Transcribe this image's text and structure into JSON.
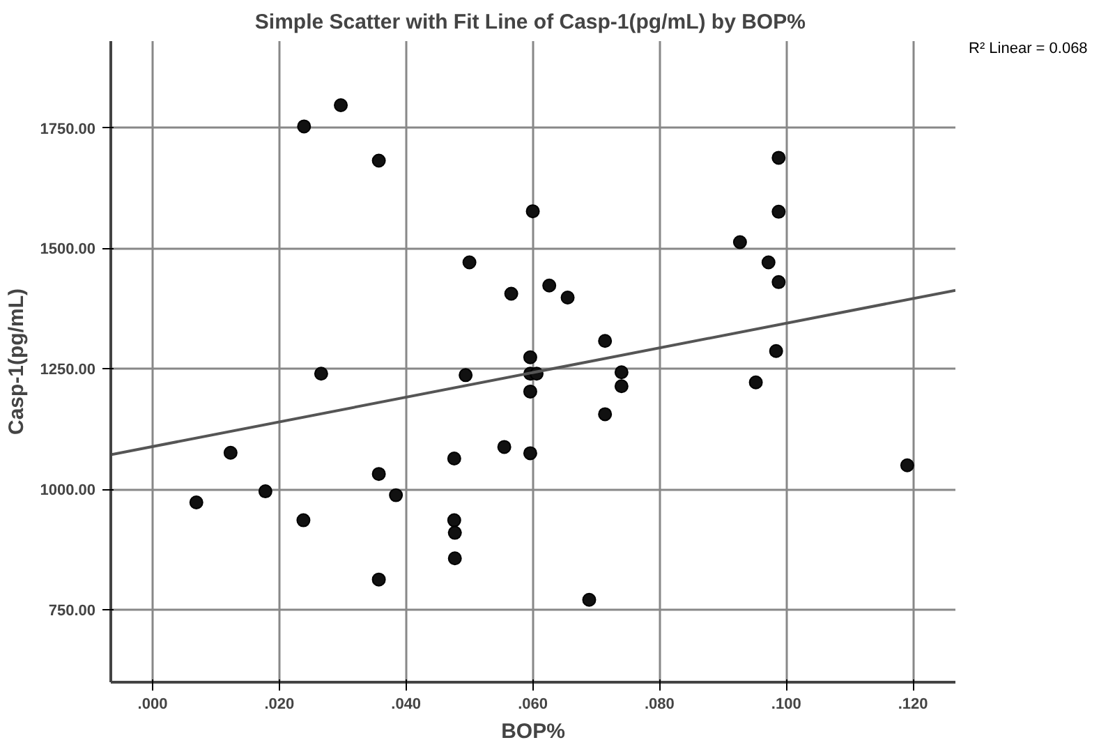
{
  "chart_data": {
    "type": "scatter",
    "title": "Simple Scatter with Fit Line of Casp-1(pg/mL) by  BOP%",
    "xlabel": "BOP%",
    "ylabel": "Casp-1(pg/mL)",
    "annotations": [
      "R² Linear = 0.068"
    ],
    "series": [
      {
        "color": "#111111",
        "marker": "circle",
        "x": [
          0.0239,
          0.0297,
          0.0357,
          0.06,
          0.0988,
          0.0988,
          0.0927,
          0.0972,
          0.0988,
          0.0984,
          0.0952,
          0.0714,
          0.074,
          0.074,
          0.0714,
          0.0626,
          0.0655,
          0.1191,
          0.05,
          0.0566,
          0.0596,
          0.0596,
          0.0606,
          0.0596,
          0.0266,
          0.0494,
          0.0123,
          0.0476,
          0.0555,
          0.0596,
          0.0357,
          0.0178,
          0.0384,
          0.0069,
          0.0238,
          0.0476,
          0.0477,
          0.0477,
          0.0357,
          0.0689
        ],
        "values": [
          1753,
          1797,
          1682,
          1577,
          1688,
          1576,
          1513,
          1471,
          1430,
          1287,
          1222,
          1308,
          1243,
          1214,
          1156,
          1423,
          1398,
          1050,
          1471,
          1406,
          1274,
          1240,
          1240,
          1203,
          1240,
          1237,
          1076,
          1064,
          1088,
          1075,
          1032,
          996,
          988,
          973,
          936,
          936,
          910,
          857,
          813,
          771
        ]
      },
      {
        "type": "line",
        "color": "#555555",
        "marker": "none",
        "line_style": "solid",
        "x": [
          -0.0066,
          0.1267
        ],
        "values": [
          1072,
          1413
        ]
      }
    ],
    "xlim": [
      -0.0066,
      0.1267
    ],
    "ylim": [
      600,
      1930
    ],
    "xticks": [
      {
        "value": 0,
        "label": ".000"
      },
      {
        "value": 0.02,
        "label": ".020"
      },
      {
        "value": 0.04,
        "label": ".040"
      },
      {
        "value": 0.06,
        "label": ".060"
      },
      {
        "value": 0.08,
        "label": ".080"
      },
      {
        "value": 0.1,
        "label": ".100"
      },
      {
        "value": 0.12,
        "label": ".120"
      }
    ],
    "yticks": [
      {
        "value": 750,
        "label": "750.00"
      },
      {
        "value": 1000,
        "label": "1000.00"
      },
      {
        "value": 1250,
        "label": "1250.00"
      },
      {
        "value": 1500,
        "label": "1500.00"
      },
      {
        "value": 1750,
        "label": "1750.00"
      }
    ],
    "grid": true
  }
}
